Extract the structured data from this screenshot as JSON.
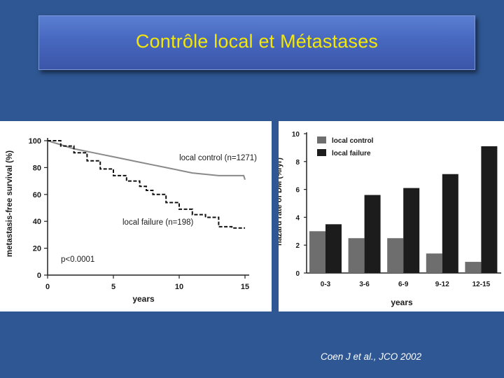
{
  "slide": {
    "title": "Contrôle local et Métastases",
    "citation": "Coen J et al., JCO 2002",
    "background_color": "#2f5793",
    "title_color": "#f4e70a"
  },
  "chart_data": [
    {
      "type": "line",
      "title": "",
      "xlabel": "years",
      "ylabel": "metastasis-free survival (%)",
      "xlim": [
        0,
        15
      ],
      "ylim": [
        0,
        100
      ],
      "x_ticks": [
        "0",
        "5",
        "10",
        "15"
      ],
      "y_ticks": [
        "0",
        "20",
        "40",
        "60",
        "80",
        "100"
      ],
      "annotation": "p<0.0001",
      "series": [
        {
          "name": "local control (n=1271)",
          "style": "solid",
          "color": "#8a8a8a",
          "x": [
            0,
            1,
            2,
            3,
            4,
            5,
            6,
            7,
            8,
            9,
            10,
            11,
            12,
            13,
            14,
            14.9,
            15
          ],
          "y": [
            100,
            97,
            94,
            92,
            90,
            88,
            86,
            84,
            82,
            80,
            78,
            76,
            75,
            74,
            74,
            74,
            71
          ]
        },
        {
          "name": "local failure (n=198)",
          "style": "dashed-step",
          "color": "#111111",
          "x": [
            0,
            1,
            2,
            3,
            4,
            5,
            6,
            7,
            7.5,
            8,
            9,
            10,
            11,
            12,
            13,
            14,
            15
          ],
          "y": [
            100,
            96,
            91,
            85,
            79,
            74,
            70,
            66,
            63,
            60,
            54,
            49,
            45,
            43,
            36,
            35,
            35
          ]
        }
      ]
    },
    {
      "type": "bar",
      "title": "",
      "xlabel": "years",
      "ylabel": "hazard rate of DM (%/yr)",
      "ylim": [
        0,
        10
      ],
      "y_ticks": [
        "0",
        "2",
        "4",
        "6",
        "8",
        "10"
      ],
      "categories": [
        "0-3",
        "3-6",
        "6-9",
        "9-12",
        "12-15"
      ],
      "series": [
        {
          "name": "local control",
          "color": "#6e6e6e",
          "values": [
            3.0,
            2.5,
            2.5,
            1.4,
            0.8
          ]
        },
        {
          "name": "local failure",
          "color": "#1c1c1c",
          "values": [
            3.5,
            5.6,
            6.1,
            7.1,
            9.1
          ]
        }
      ]
    }
  ]
}
